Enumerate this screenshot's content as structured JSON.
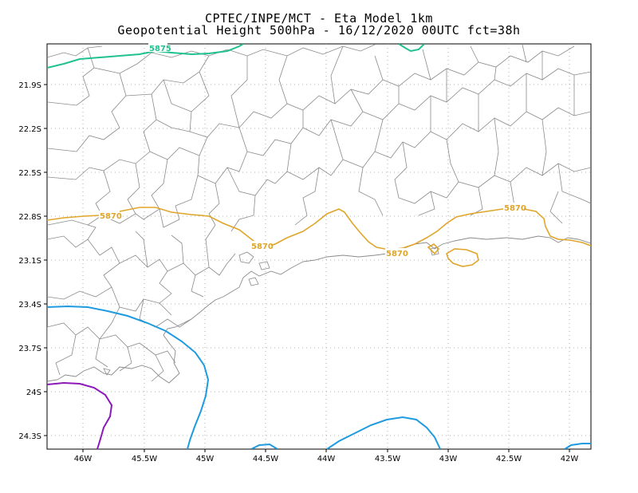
{
  "header": {
    "line1": "CPTEC/INPE/MCT -  Eta Model 1km",
    "line2": "Geopotential Height 500hPa - 16/12/2020 00UTC fct=38h"
  },
  "map": {
    "lat_labels": [
      "21.9S",
      "22.2S",
      "22.5S",
      "22.8S",
      "23.1S",
      "23.4S",
      "23.7S",
      "24S",
      "24.3S"
    ],
    "lon_labels": [
      "46W",
      "45.5W",
      "45W",
      "44.5W",
      "44W",
      "43.5W",
      "43W",
      "42.5W",
      "42W"
    ],
    "contour_labels": {
      "green": "5875",
      "orange_1": "5870",
      "orange_2": "5870",
      "orange_3": "5870",
      "orange_4": "5870"
    },
    "colors": {
      "green": "#1fc28f",
      "orange": "#e0a52a",
      "blue": "#1e9be0",
      "purple": "#8b18b8",
      "borders": "#8a8a8a",
      "grid": "#9a9a9a"
    }
  }
}
